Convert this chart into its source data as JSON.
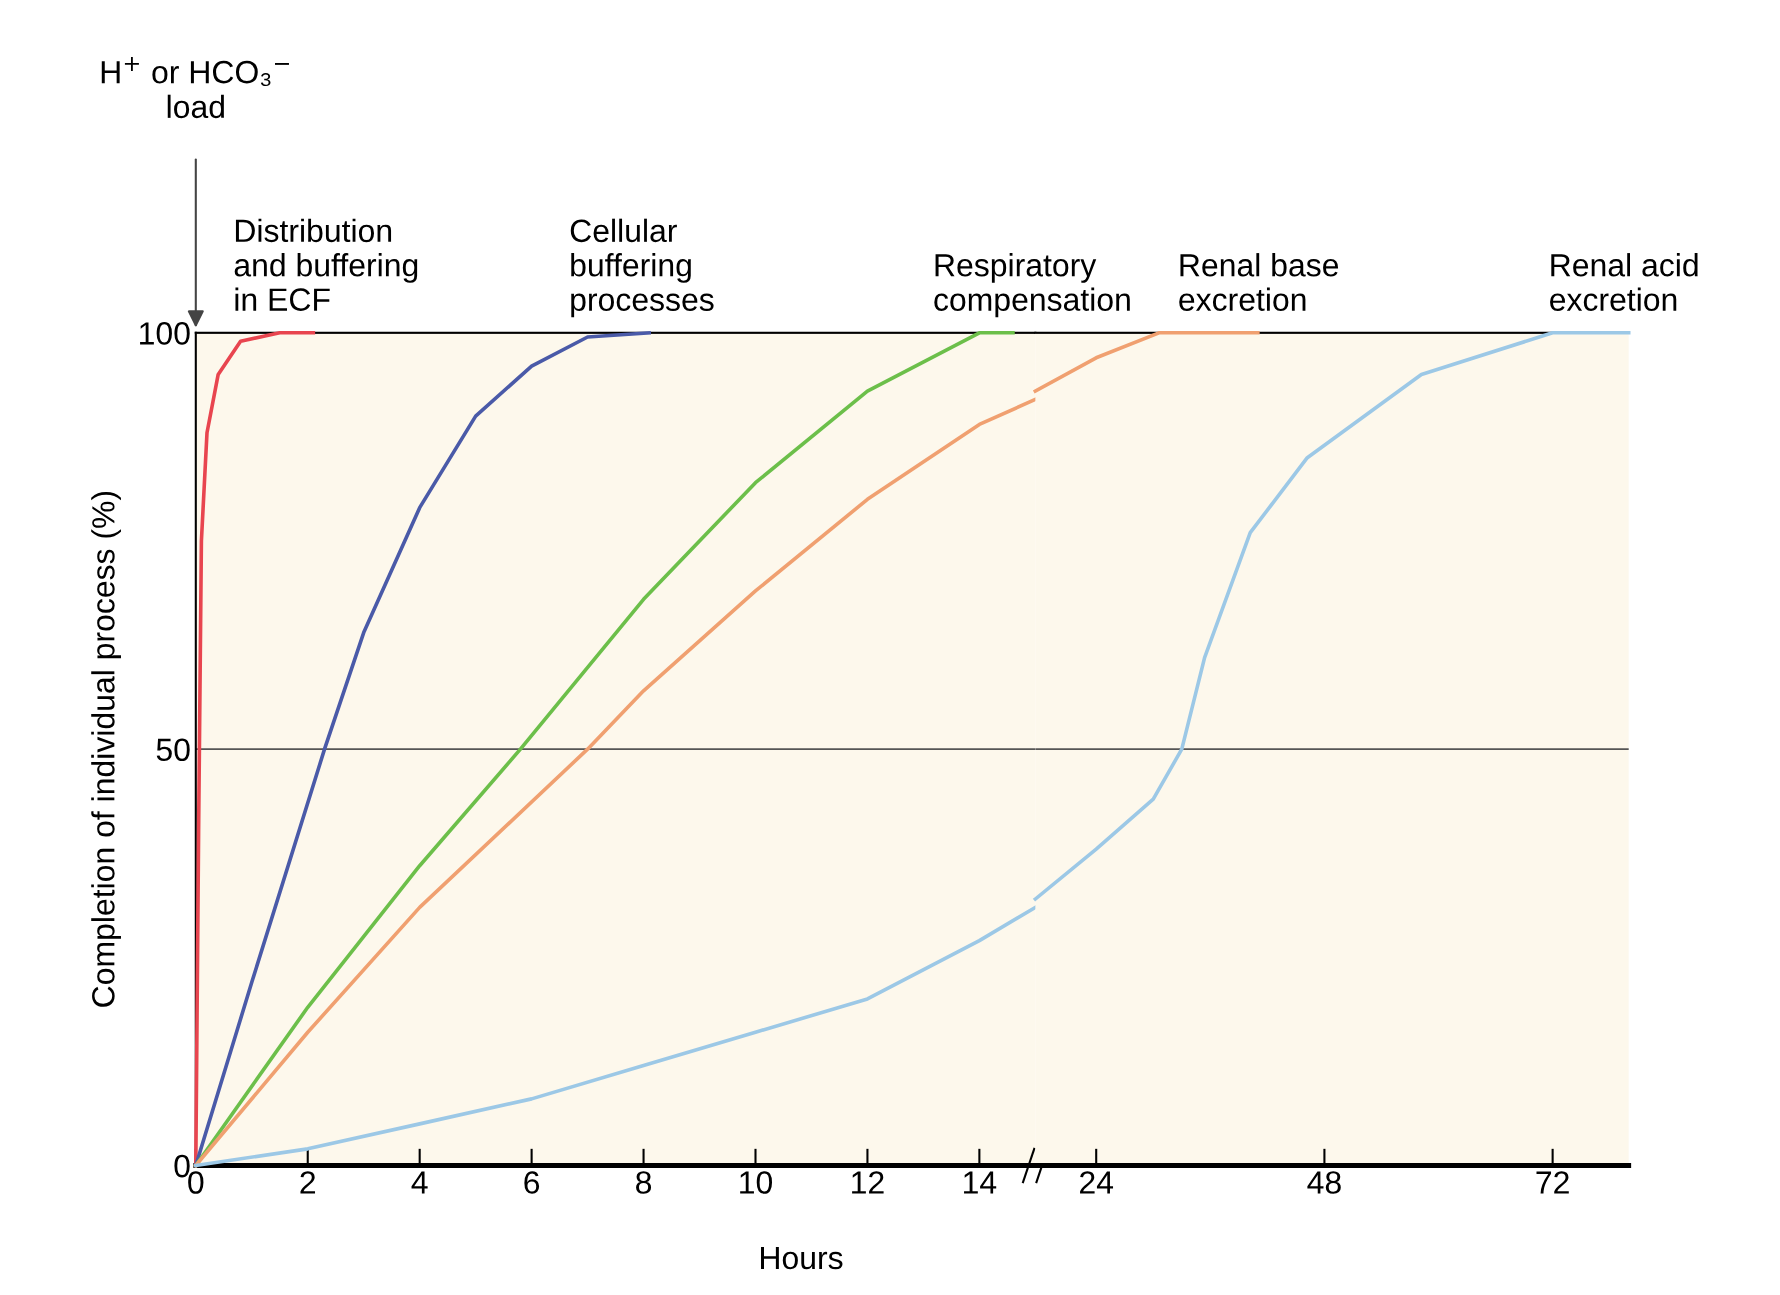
{
  "chart_data": [
    {
      "type": "line",
      "ylabel": "Completion of individual process (%)",
      "xlabel": "Hours",
      "xlim": [
        0,
        15
      ],
      "xticks": [
        0,
        2,
        4,
        6,
        8,
        10,
        12,
        14
      ],
      "ylim": [
        0,
        100
      ],
      "yticks": [
        0,
        50,
        100
      ],
      "grid": "y",
      "line_style": "solid",
      "annotations": [
        "H$^{+}$ or HCO₃$^{−}$\nload"
      ],
      "series": [
        {
          "name": "Distribution\nand buffering\nin ECF",
          "color": "#e8454f",
          "x": [
            0,
            0.05,
            0.1,
            0.2,
            0.4,
            0.8,
            1.5,
            2.1
          ],
          "values": [
            0,
            40,
            75,
            88,
            95,
            99,
            100,
            100
          ]
        },
        {
          "name": "Cellular\nbuffering\nprocesses",
          "color": "#4a5aa8",
          "x": [
            0,
            1,
            2.3,
            3,
            4,
            5,
            6,
            7,
            8.1
          ],
          "values": [
            0,
            22,
            50,
            64,
            79,
            90,
            96,
            99.5,
            100
          ]
        },
        {
          "name": "Respiratory\ncompensation",
          "color": "#6cbf4a",
          "x": [
            0,
            2,
            4,
            5.8,
            8,
            10,
            12,
            14,
            14.6
          ],
          "values": [
            0,
            19,
            36,
            50,
            68,
            82,
            93,
            100,
            100
          ]
        },
        {
          "color": "#f0a070",
          "x": [
            0,
            2,
            4,
            7,
            8,
            10,
            12,
            14,
            15
          ],
          "values": [
            0,
            16,
            31,
            50,
            57,
            69,
            80,
            89,
            92
          ]
        },
        {
          "color": "#9cc8e6",
          "x": [
            0,
            2,
            4,
            6,
            8,
            10,
            12,
            14,
            15
          ],
          "values": [
            0,
            2,
            5,
            8,
            12,
            16,
            20,
            27,
            31
          ]
        }
      ]
    },
    {
      "type": "line",
      "xlim": [
        17.6,
        80
      ],
      "xticks": [
        24,
        48,
        72
      ],
      "ylim": [
        0,
        100
      ],
      "tick_labels": "x",
      "grid": "y",
      "line_style": "solid",
      "series": [
        {
          "name": "Renal base\nexcretion",
          "color": "#f0a070",
          "x": [
            17.6,
            24,
            30.6,
            41
          ],
          "values": [
            93,
            97,
            100,
            100
          ]
        },
        {
          "name": "Renal acid\nexcretion",
          "color": "#9cc8e6",
          "x": [
            17.6,
            24,
            30,
            33,
            35.4,
            40.2,
            46.2,
            58.2,
            72,
            80
          ],
          "values": [
            32,
            38,
            44,
            50,
            61,
            76,
            85,
            95,
            100,
            100
          ]
        }
      ]
    }
  ]
}
